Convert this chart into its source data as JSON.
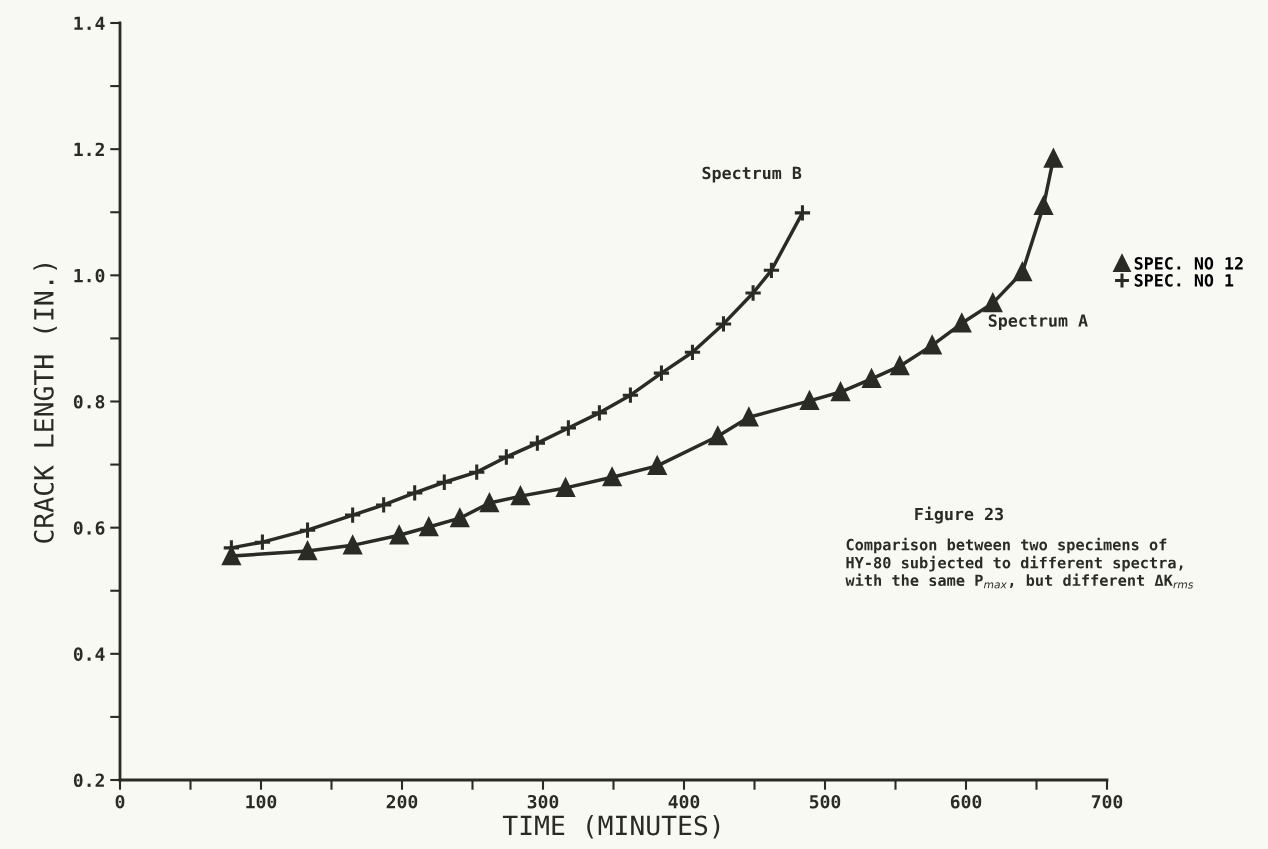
{
  "chart_data": {
    "type": "line",
    "xlabel": "TIME (MINUTES)",
    "ylabel": "CRACK LENGTH (IN.)",
    "xlim": [
      0,
      700
    ],
    "ylim": [
      0.2,
      1.4
    ],
    "xticks": [
      0,
      {
        "value": 50,
        "label": null
      },
      100,
      {
        "value": 150,
        "label": null
      },
      200,
      {
        "value": 250,
        "label": null
      },
      300,
      {
        "value": 350,
        "label": null
      },
      400,
      {
        "value": 450,
        "label": null
      },
      500,
      {
        "value": 550,
        "label": null
      },
      600,
      {
        "value": 650,
        "label": null
      },
      700
    ],
    "yticks": [
      {
        "value": 0.2,
        "label": "0.2"
      },
      {
        "value": 0.3,
        "label": null
      },
      {
        "value": 0.4,
        "label": "0.4"
      },
      {
        "value": 0.5,
        "label": null
      },
      {
        "value": 0.6,
        "label": "0.6"
      },
      {
        "value": 0.7,
        "label": null
      },
      {
        "value": 0.8,
        "label": "0.8"
      },
      {
        "value": 0.9,
        "label": null
      },
      {
        "value": 1.0,
        "label": "1.0"
      },
      {
        "value": 1.1,
        "label": null
      },
      {
        "value": 1.2,
        "label": "1.2"
      },
      {
        "value": 1.3,
        "label": null
      },
      {
        "value": 1.4,
        "label": "1.4"
      }
    ],
    "grid": false,
    "legend": "right",
    "line_style": "solid",
    "series": [
      {
        "name": "SPEC. NO 12",
        "color": "#2b2b26",
        "marker": "triangle",
        "x": [
          79,
          133,
          165,
          198,
          219,
          241,
          262,
          284,
          316,
          349,
          381,
          424,
          446,
          489,
          511,
          533,
          553,
          576,
          597,
          619,
          640,
          655,
          662
        ],
        "values": [
          0.555,
          0.563,
          0.572,
          0.588,
          0.601,
          0.615,
          0.639,
          0.65,
          0.663,
          0.68,
          0.698,
          0.745,
          0.775,
          0.801,
          0.815,
          0.836,
          0.856,
          0.889,
          0.924,
          0.956,
          1.005,
          1.11,
          1.185
        ]
      },
      {
        "name": "SPEC. NO 1",
        "color": "#2b2b26",
        "marker": "cross",
        "x": [
          79,
          101,
          133,
          165,
          187,
          209,
          230,
          253,
          274,
          296,
          318,
          340,
          362,
          384,
          406,
          428,
          449,
          462,
          484
        ],
        "values": [
          0.568,
          0.577,
          0.596,
          0.62,
          0.636,
          0.655,
          0.672,
          0.688,
          0.712,
          0.734,
          0.758,
          0.782,
          0.81,
          0.845,
          0.878,
          0.923,
          0.972,
          1.008,
          1.099
        ]
      }
    ],
    "annotations": [
      "Spectrum B",
      "Spectrum A",
      "Figure 23",
      "Comparison between two specimens of\nHY-80 subjected to different spectra,\nwith the same P$_{max}$, but different ΔK$_{rms}$"
    ]
  }
}
